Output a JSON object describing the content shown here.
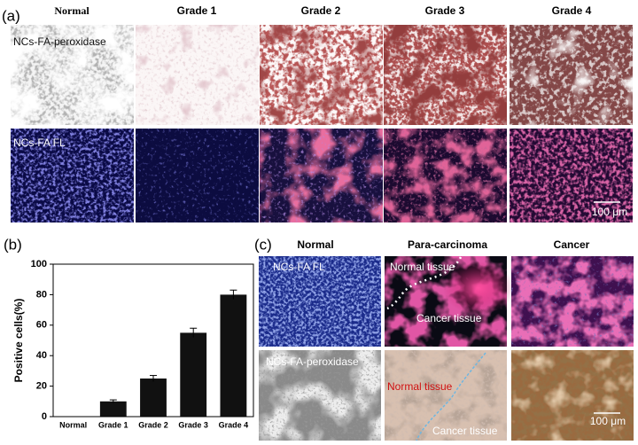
{
  "panel_a": {
    "label": "(a)",
    "columns": [
      "Normal",
      "Grade 1",
      "Grade 2",
      "Grade 3",
      "Grade 4"
    ],
    "rows": [
      "NCs-FA-peroxidase",
      "NCs-FA FL"
    ],
    "scale_bar": "100 μm"
  },
  "chart_data": {
    "type": "bar",
    "panel_label": "(b)",
    "y_label": "Positive cells(%)",
    "categories": [
      "Normal",
      "Grade 1",
      "Grade 2",
      "Grade 3",
      "Grade 4"
    ],
    "values": [
      0,
      10,
      25,
      55,
      80
    ],
    "errors": [
      0,
      1,
      2,
      3,
      3
    ],
    "color": "#111111",
    "ylim": [
      0,
      100
    ],
    "yticks": [
      0,
      20,
      40,
      60,
      80,
      100
    ]
  },
  "panel_c": {
    "label": "(c)",
    "columns": [
      "Normal",
      "Para-carcinoma",
      "Cancer"
    ],
    "rows": [
      "NCs-FA FL",
      "NCs-FA-peroxidase"
    ],
    "annotations": [
      "Normal tissue",
      "Cancer tissue",
      "Normal tissue",
      "Cancer tissue"
    ],
    "scale_bar": "100 μm"
  }
}
